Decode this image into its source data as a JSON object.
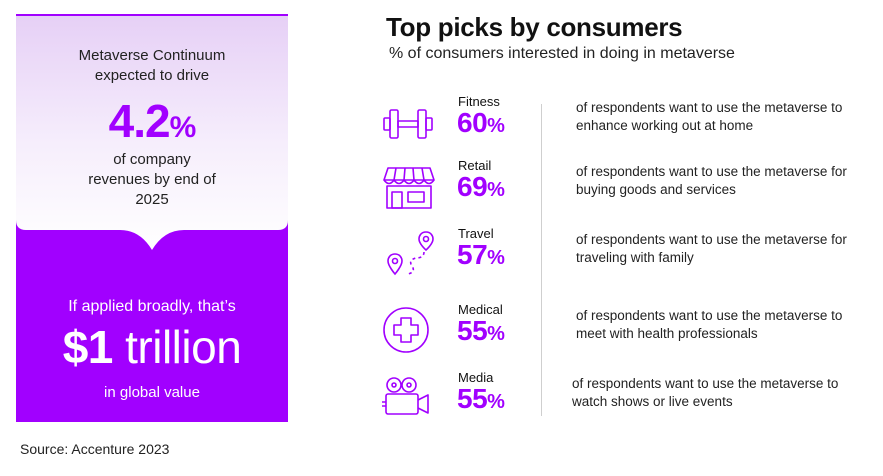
{
  "left_panel": {
    "intro": "Metaverse Continuum expected to drive",
    "big_value": "4.2",
    "big_unit": "%",
    "outro": "of company revenues by end of 2025",
    "applied": "If applied broadly, that’s",
    "trillion_value": "$1",
    "trillion_word": "trillion",
    "global": "in global value",
    "colors": {
      "purple": "#a100ff",
      "gradient_top": "#ead7f7"
    }
  },
  "title": "Top picks by consumers",
  "subtitle": "% of consumers interested in doing in metaverse",
  "picks": [
    {
      "name": "Fitness",
      "value": "60",
      "unit": "%",
      "icon": "dumbbell-icon",
      "description": "of respondents want to use the metaverse to enhance working out at home"
    },
    {
      "name": "Retail",
      "value": "69",
      "unit": "%",
      "icon": "storefront-icon",
      "description": "of respondents want to use the metaverse for buying goods and services"
    },
    {
      "name": "Travel",
      "value": "57",
      "unit": "%",
      "icon": "route-pins-icon",
      "description": "of respondents want to use the metaverse for traveling with family"
    },
    {
      "name": "Medical",
      "value": "55",
      "unit": "%",
      "icon": "medical-cross-icon",
      "description": "of respondents want to use the metaverse to meet with health professionals"
    },
    {
      "name": "Media",
      "value": "55",
      "unit": "%",
      "icon": "video-camera-icon",
      "description": "of respondents want to use the metaverse to watch shows or live events"
    }
  ],
  "source": "Source: Accenture 2023"
}
